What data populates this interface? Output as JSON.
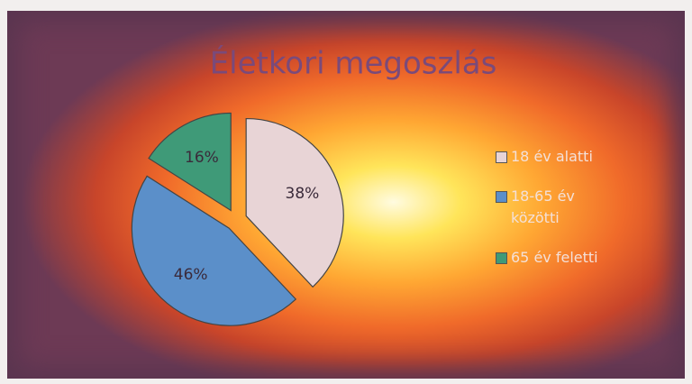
{
  "chart_data": {
    "type": "pie",
    "title": "Életkori megoszlás",
    "categories": [
      "18 év alatti",
      "18-65 év közötti",
      "65 év feletti"
    ],
    "values": [
      38,
      46,
      16
    ],
    "value_labels": [
      "38%",
      "46%",
      "16%"
    ],
    "colors": [
      "#e8d4d6",
      "#5b8fc9",
      "#3f9a78"
    ],
    "exploded": true,
    "legend": "right"
  }
}
